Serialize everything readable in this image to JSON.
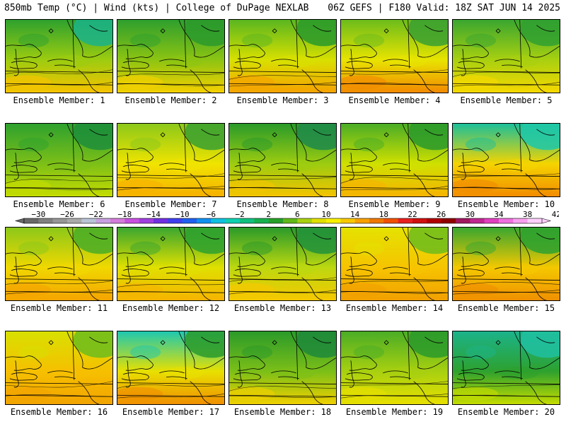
{
  "header": {
    "left": "850mb Temp (°C) | Wind (kts) | College of DuPage NEXLAB",
    "right": "06Z GEFS | F180 Valid: 18Z SAT JUN 14 2025"
  },
  "members": [
    {
      "label": "Ensemble Member: 1",
      "north": "#2ea12e",
      "mid": "#9ccc10",
      "south": "#f7c300",
      "ne": "#1bb38a"
    },
    {
      "label": "Ensemble Member: 2",
      "north": "#2e9f2e",
      "mid": "#8cc412",
      "south": "#f5d000",
      "ne": "#2b9a2b"
    },
    {
      "label": "Ensemble Member: 3",
      "north": "#5ab620",
      "mid": "#d8e000",
      "south": "#f5a300",
      "ne": "#2a9a2a"
    },
    {
      "label": "Ensemble Member: 4",
      "north": "#6cbc1c",
      "mid": "#e8e400",
      "south": "#f28a00",
      "ne": "#3aa030"
    },
    {
      "label": "Ensemble Member: 5",
      "north": "#3aa630",
      "mid": "#a8d010",
      "south": "#f7d800",
      "ne": "#30a030"
    },
    {
      "label": "Ensemble Member: 6",
      "north": "#2ea12e",
      "mid": "#7cbf18",
      "south": "#c4dc00",
      "ne": "#1e8e3a"
    },
    {
      "label": "Ensemble Member: 7",
      "north": "#8cc81a",
      "mid": "#f0e400",
      "south": "#f6b000",
      "ne": "#3aa030"
    },
    {
      "label": "Ensemble Member: 8",
      "north": "#2a9a2a",
      "mid": "#9ccc10",
      "south": "#f4c400",
      "ne": "#1f8a4a"
    },
    {
      "label": "Ensemble Member: 9",
      "north": "#4aad26",
      "mid": "#cfe000",
      "south": "#f6b400",
      "ne": "#2a9a2a"
    },
    {
      "label": "Ensemble Member: 10",
      "north": "#1bbf9a",
      "mid": "#f4d400",
      "south": "#f28c00",
      "ne": "#1ec8a8"
    },
    {
      "label": "Ensemble Member: 11",
      "north": "#8cc81a",
      "mid": "#f0d800",
      "south": "#f5a400",
      "ne": "#4aad26"
    },
    {
      "label": "Ensemble Member: 12",
      "north": "#3aa630",
      "mid": "#e0e000",
      "south": "#f5b400",
      "ne": "#2ea12e"
    },
    {
      "label": "Ensemble Member: 13",
      "north": "#2a9a2a",
      "mid": "#bcd810",
      "south": "#f6c800",
      "ne": "#22923a"
    },
    {
      "label": "Ensemble Member: 14",
      "north": "#e4e200",
      "mid": "#f6c400",
      "south": "#f2a000",
      "ne": "#6cbc1c"
    },
    {
      "label": "Ensemble Member: 15",
      "north": "#3aa630",
      "mid": "#f4c800",
      "south": "#f09000",
      "ne": "#2ea12e"
    },
    {
      "label": "Ensemble Member: 16",
      "north": "#d8e000",
      "mid": "#f6c000",
      "south": "#f2a400",
      "ne": "#6cbc1c"
    },
    {
      "label": "Ensemble Member: 17",
      "north": "#1ec8b0",
      "mid": "#e8e000",
      "south": "#f09000",
      "ne": "#2a9a2a"
    },
    {
      "label": "Ensemble Member: 18",
      "north": "#2a9a2a",
      "mid": "#7cbf18",
      "south": "#f0d000",
      "ne": "#1f8a3a"
    },
    {
      "label": "Ensemble Member: 19",
      "north": "#4aad26",
      "mid": "#a8d010",
      "south": "#e8e000",
      "ne": "#2a9a2a"
    },
    {
      "label": "Ensemble Member: 20",
      "north": "#1bb38a",
      "mid": "#2ea12e",
      "south": "#c4dc00",
      "ne": "#20c0a0"
    }
  ],
  "colorbar": {
    "ticks": [
      "-30",
      "-26",
      "-22",
      "-18",
      "-14",
      "-10",
      "-6",
      "-2",
      "2",
      "6",
      "10",
      "14",
      "18",
      "22",
      "26",
      "30",
      "34",
      "38",
      "42"
    ],
    "colors": [
      "#696969",
      "#808080",
      "#969696",
      "#aaaaaa",
      "#b9c4d6",
      "#c8a0e0",
      "#d47cdc",
      "#c850e0",
      "#a040e0",
      "#7030e0",
      "#4040f0",
      "#2060f0",
      "#1090f0",
      "#10c0e0",
      "#10d0b0",
      "#10c080",
      "#18b050",
      "#28a028",
      "#60b818",
      "#a8d010",
      "#e0e000",
      "#f8f000",
      "#f8c800",
      "#f8a000",
      "#f07800",
      "#f05000",
      "#e82020",
      "#d01010",
      "#b00000",
      "#900000",
      "#a01860",
      "#c02890",
      "#e040c0",
      "#f070e0",
      "#f8a0f0",
      "#ffd0ff"
    ]
  }
}
